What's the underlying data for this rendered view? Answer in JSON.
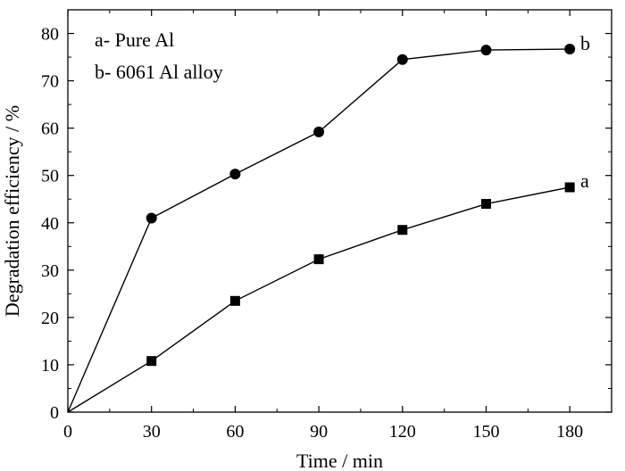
{
  "chart_data": {
    "type": "line",
    "xlabel": "Time / min",
    "ylabel": "Degradation efficiency / %",
    "xlim": [
      0,
      195
    ],
    "ylim": [
      0,
      85
    ],
    "xticks": [
      0,
      30,
      60,
      90,
      120,
      150,
      180
    ],
    "yticks": [
      0,
      10,
      20,
      30,
      40,
      50,
      60,
      70,
      80
    ],
    "grid": false,
    "legend_position": "top-left",
    "legend": [
      "a- Pure Al",
      "b- 6061 Al alloy"
    ],
    "series": [
      {
        "name": "a",
        "marker": "square",
        "color": "#000000",
        "x": [
          0,
          30,
          60,
          90,
          120,
          150,
          180
        ],
        "y": [
          0,
          10.8,
          23.5,
          32.3,
          38.5,
          44.0,
          47.5
        ]
      },
      {
        "name": "b",
        "marker": "circle",
        "color": "#000000",
        "x": [
          0,
          30,
          60,
          90,
          120,
          150,
          180
        ],
        "y": [
          0,
          41.0,
          50.3,
          59.2,
          74.5,
          76.5,
          76.7
        ]
      }
    ]
  }
}
